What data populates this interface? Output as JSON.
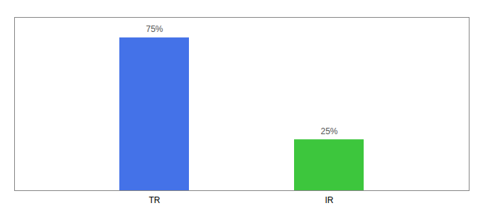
{
  "chart_data": {
    "type": "bar",
    "categories": [
      "TR",
      "IR"
    ],
    "values": [
      75,
      25
    ],
    "value_labels": [
      "75%",
      "25%"
    ],
    "colors": [
      "#4472E8",
      "#3DC63D"
    ],
    "ylim": [
      0,
      85
    ],
    "data_labels": true,
    "tick_labels": "x"
  }
}
